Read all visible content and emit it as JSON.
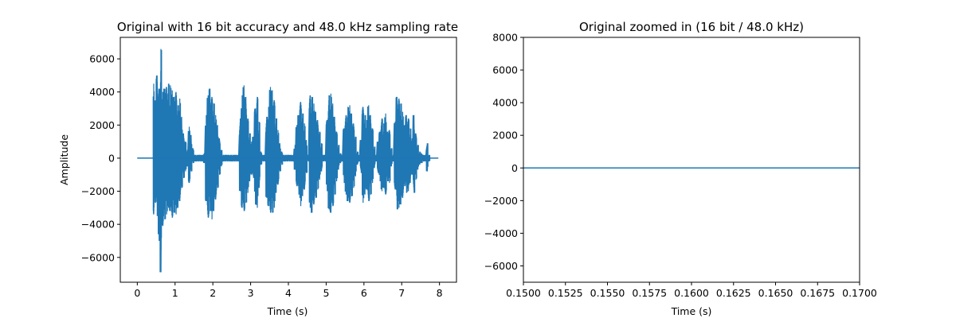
{
  "chart_data": [
    {
      "type": "line",
      "title": "Original with 16 bit accuracy and 48.0 kHz sampling rate",
      "xlabel": "Time (s)",
      "ylabel": "Amplitude",
      "xlim": [
        -0.45,
        8.45
      ],
      "ylim": [
        -7500,
        7300
      ],
      "grid": false,
      "color": "#1f77b4",
      "x_ticks": [
        0,
        1,
        2,
        3,
        4,
        5,
        6,
        7,
        8
      ],
      "x_tick_labels": [
        "0",
        "1",
        "2",
        "3",
        "4",
        "5",
        "6",
        "7",
        "8"
      ],
      "y_ticks": [
        -6000,
        -4000,
        -2000,
        0,
        2000,
        4000,
        6000
      ],
      "y_tick_labels": [
        "−6000",
        "−4000",
        "−2000",
        "0",
        "2000",
        "4000",
        "6000"
      ],
      "series": [
        {
          "x": [
            0,
            0.42,
            0.45,
            0.5,
            0.55,
            0.6,
            0.65,
            0.7,
            0.75,
            0.8,
            0.85,
            0.9,
            0.95,
            1.0,
            1.05,
            1.1,
            1.15,
            1.2,
            1.25,
            1.3,
            1.35,
            1.4,
            1.45,
            1.5,
            1.55,
            1.6,
            1.65,
            1.7,
            1.75,
            1.8,
            1.85,
            1.9,
            1.95,
            2.0,
            2.05,
            2.1,
            2.15,
            2.2,
            2.25,
            2.3,
            2.35,
            2.4,
            2.45,
            2.5,
            2.55,
            2.6,
            2.65,
            2.7,
            2.75,
            2.8,
            2.85,
            2.9,
            2.95,
            3.0,
            3.05,
            3.1,
            3.15,
            3.2,
            3.25,
            3.3,
            3.35,
            3.4,
            3.45,
            3.5,
            3.55,
            3.6,
            3.65,
            3.7,
            3.75,
            3.8,
            3.85,
            3.9,
            3.95,
            4.0,
            4.05,
            4.1,
            4.15,
            4.2,
            4.25,
            4.3,
            4.35,
            4.4,
            4.45,
            4.5,
            4.55,
            4.6,
            4.65,
            4.7,
            4.75,
            4.8,
            4.85,
            4.9,
            4.95,
            5.0,
            5.05,
            5.1,
            5.15,
            5.2,
            5.25,
            5.3,
            5.35,
            5.4,
            5.45,
            5.5,
            5.55,
            5.6,
            5.65,
            5.7,
            5.75,
            5.8,
            5.85,
            5.9,
            5.95,
            6.0,
            6.05,
            6.1,
            6.15,
            6.2,
            6.25,
            6.3,
            6.35,
            6.4,
            6.45,
            6.5,
            6.55,
            6.6,
            6.65,
            6.7,
            6.75,
            6.8,
            6.85,
            6.9,
            6.95,
            7.0,
            7.05,
            7.1,
            7.15,
            7.2,
            7.25,
            7.3,
            7.35,
            7.4,
            7.45,
            7.5,
            7.55,
            7.6,
            7.65,
            7.7,
            7.75,
            7.8,
            7.85,
            7.9,
            7.95
          ],
          "y_max": [
            0,
            4500,
            3500,
            5000,
            4200,
            6600,
            4000,
            4200,
            4300,
            4500,
            4400,
            4100,
            3700,
            4000,
            3200,
            3600,
            2500,
            1500,
            1000,
            500,
            1900,
            1400,
            600,
            200,
            200,
            200,
            200,
            200,
            300,
            2600,
            3800,
            4200,
            3700,
            3300,
            2600,
            2000,
            1200,
            500,
            200,
            200,
            200,
            200,
            200,
            200,
            200,
            200,
            200,
            2400,
            3800,
            4400,
            3700,
            2400,
            1500,
            1000,
            1300,
            3000,
            3700,
            2200,
            400,
            200,
            200,
            2500,
            3100,
            4300,
            4100,
            3500,
            2400,
            1700,
            900,
            400,
            200,
            200,
            200,
            200,
            200,
            200,
            800,
            2000,
            2600,
            3400,
            2700,
            2100,
            1100,
            200,
            3800,
            3700,
            3300,
            2800,
            2300,
            1600,
            900,
            200,
            200,
            2300,
            3800,
            3900,
            3300,
            2500,
            1600,
            800,
            300,
            200,
            1800,
            2600,
            3100,
            3200,
            2700,
            2100,
            1300,
            400,
            200,
            1100,
            3100,
            2600,
            2300,
            3200,
            2600,
            1800,
            700,
            200,
            1000,
            1600,
            2400,
            2100,
            2700,
            1600,
            1700,
            600,
            200,
            2200,
            3700,
            3600,
            3300,
            2800,
            2000,
            2600,
            2400,
            1800,
            1200,
            2600,
            1500,
            800,
            400,
            300,
            200,
            200,
            900,
            200
          ],
          "y_min": [
            0,
            -3400,
            -2700,
            -3500,
            -5000,
            -6900,
            -4100,
            -3700,
            -3400,
            -3000,
            -3200,
            -3600,
            -3300,
            -3400,
            -3000,
            -2600,
            -1800,
            -1200,
            -800,
            -500,
            -1500,
            -800,
            -300,
            -200,
            -200,
            -200,
            -200,
            -200,
            -300,
            -2600,
            -3600,
            -3200,
            -3700,
            -3200,
            -2500,
            -1800,
            -1000,
            -500,
            -200,
            -200,
            -200,
            -200,
            -200,
            -200,
            -200,
            -200,
            -200,
            -2000,
            -3000,
            -3200,
            -2700,
            -2100,
            -1400,
            -1000,
            -1200,
            -2800,
            -3000,
            -1800,
            -400,
            -200,
            -200,
            -2400,
            -2900,
            -3300,
            -3300,
            -3000,
            -2100,
            -1600,
            -800,
            -400,
            -200,
            -200,
            -200,
            -200,
            -200,
            -200,
            -700,
            -1700,
            -2200,
            -2900,
            -2300,
            -1900,
            -900,
            -200,
            -3000,
            -3300,
            -2800,
            -2400,
            -1900,
            -1300,
            -800,
            -200,
            -200,
            -2000,
            -3100,
            -3300,
            -2900,
            -2200,
            -1400,
            -700,
            -300,
            -200,
            -1500,
            -2200,
            -2600,
            -2700,
            -2300,
            -1800,
            -1100,
            -400,
            -200,
            -900,
            -2700,
            -2200,
            -1900,
            -2600,
            -2200,
            -1500,
            -600,
            -200,
            -900,
            -1400,
            -2000,
            -1800,
            -2200,
            -1400,
            -1500,
            -500,
            -200,
            -1900,
            -3100,
            -3000,
            -2800,
            -2400,
            -1700,
            -2100,
            -2000,
            -1500,
            -1000,
            -2100,
            -1300,
            -700,
            -400,
            -300,
            -200,
            -200,
            -800,
            -200
          ]
        }
      ]
    },
    {
      "type": "line",
      "title": "Original zoomed in (16 bit / 48.0 kHz)",
      "xlabel": "Time (s)",
      "ylabel": "",
      "xlim": [
        0.15,
        0.17
      ],
      "ylim": [
        -7000,
        8000
      ],
      "grid": false,
      "color": "#1f77b4",
      "x_ticks": [
        0.15,
        0.1525,
        0.155,
        0.1575,
        0.16,
        0.1625,
        0.165,
        0.1675,
        0.17
      ],
      "x_tick_labels": [
        "0.1500",
        "0.1525",
        "0.1550",
        "0.1575",
        "0.1600",
        "0.1625",
        "0.1650",
        "0.1675",
        "0.1700"
      ],
      "y_ticks": [
        -6000,
        -4000,
        -2000,
        0,
        2000,
        4000,
        6000,
        8000
      ],
      "y_tick_labels": [
        "−6000",
        "−4000",
        "−2000",
        "0",
        "2000",
        "4000",
        "6000",
        "8000"
      ],
      "series": [
        {
          "x": [
            0.15,
            0.17
          ],
          "y": [
            0,
            0
          ]
        }
      ]
    }
  ]
}
